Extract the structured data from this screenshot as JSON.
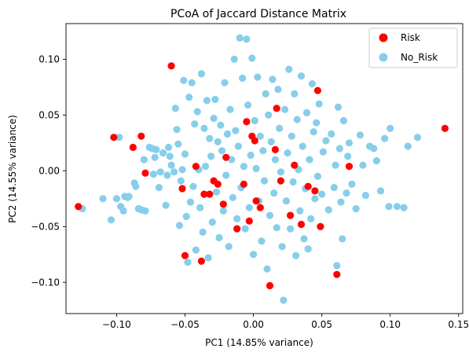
{
  "chart_data": {
    "type": "scatter",
    "title": "PCoA of Jaccard Distance Matrix",
    "xlabel": "PC1 (14.85% variance)",
    "ylabel": "PC2 (14.55% variance)",
    "xlim": [
      -0.137,
      0.153
    ],
    "ylim": [
      -0.128,
      0.132
    ],
    "xticks": [
      -0.1,
      -0.05,
      0.0,
      0.05,
      0.1,
      0.15
    ],
    "xtick_labels": [
      "−0.10",
      "−0.05",
      "0.00",
      "0.05",
      "0.10",
      "0.15"
    ],
    "yticks": [
      -0.1,
      -0.05,
      0.0,
      0.05,
      0.1
    ],
    "ytick_labels": [
      "−0.10",
      "−0.05",
      "0.00",
      "0.05",
      "0.10"
    ],
    "grid": false,
    "legend_position": "top-right",
    "series": [
      {
        "name": "Risk",
        "color": "#ff0000",
        "points": [
          [
            -0.128,
            -0.032
          ],
          [
            -0.102,
            0.03
          ],
          [
            -0.088,
            0.021
          ],
          [
            -0.082,
            0.031
          ],
          [
            -0.079,
            -0.002
          ],
          [
            -0.06,
            0.094
          ],
          [
            -0.052,
            -0.016
          ],
          [
            -0.05,
            -0.076
          ],
          [
            -0.042,
            0.004
          ],
          [
            -0.038,
            -0.081
          ],
          [
            -0.036,
            -0.021
          ],
          [
            -0.032,
            -0.021
          ],
          [
            -0.029,
            -0.009
          ],
          [
            -0.026,
            -0.012
          ],
          [
            -0.022,
            -0.03
          ],
          [
            -0.02,
            0.012
          ],
          [
            -0.012,
            -0.052
          ],
          [
            -0.007,
            -0.012
          ],
          [
            -0.005,
            0.044
          ],
          [
            -0.003,
            -0.045
          ],
          [
            -0.001,
            0.031
          ],
          [
            0.001,
            0.027
          ],
          [
            0.002,
            -0.027
          ],
          [
            0.005,
            -0.033
          ],
          [
            0.012,
            -0.103
          ],
          [
            0.016,
            0.019
          ],
          [
            0.017,
            0.056
          ],
          [
            0.02,
            -0.009
          ],
          [
            0.027,
            -0.04
          ],
          [
            0.03,
            0.005
          ],
          [
            0.035,
            -0.048
          ],
          [
            0.04,
            -0.014
          ],
          [
            0.045,
            -0.018
          ],
          [
            0.047,
            0.072
          ],
          [
            0.049,
            -0.05
          ],
          [
            0.061,
            -0.093
          ],
          [
            0.07,
            0.004
          ],
          [
            0.14,
            0.038
          ]
        ]
      },
      {
        "name": "No_Risk",
        "color": "#87ceeb",
        "points": [
          [
            -0.125,
            -0.034
          ],
          [
            -0.11,
            -0.025
          ],
          [
            -0.104,
            -0.044
          ],
          [
            -0.1,
            -0.025
          ],
          [
            -0.098,
            0.03
          ],
          [
            -0.097,
            -0.032
          ],
          [
            -0.095,
            -0.036
          ],
          [
            -0.094,
            -0.023
          ],
          [
            -0.092,
            -0.024
          ],
          [
            -0.091,
            -0.023
          ],
          [
            -0.087,
            -0.011
          ],
          [
            -0.086,
            -0.014
          ],
          [
            -0.084,
            -0.034
          ],
          [
            -0.082,
            -0.035
          ],
          [
            -0.08,
            0.01
          ],
          [
            -0.079,
            -0.036
          ],
          [
            -0.076,
            0.021
          ],
          [
            -0.074,
            0.02
          ],
          [
            -0.073,
            -0.003
          ],
          [
            -0.072,
            0.012
          ],
          [
            -0.071,
            0.019
          ],
          [
            -0.069,
            -0.015
          ],
          [
            -0.068,
            -0.001
          ],
          [
            -0.066,
            0.016
          ],
          [
            -0.064,
            -0.031
          ],
          [
            -0.063,
            -0.004
          ],
          [
            -0.062,
            0.021
          ],
          [
            -0.061,
            0.013
          ],
          [
            -0.06,
            0.005
          ],
          [
            -0.058,
            -0.001
          ],
          [
            -0.057,
            0.056
          ],
          [
            -0.056,
            0.037
          ],
          [
            -0.055,
            0.024
          ],
          [
            -0.054,
            -0.049
          ],
          [
            -0.053,
            -0.009
          ],
          [
            -0.052,
            0.001
          ],
          [
            -0.051,
            0.081
          ],
          [
            -0.05,
            0.015
          ],
          [
            -0.049,
            -0.041
          ],
          [
            -0.048,
            -0.082
          ],
          [
            -0.047,
            0.066
          ],
          [
            -0.046,
            -0.028
          ],
          [
            -0.045,
            0.079
          ],
          [
            -0.044,
            -0.014
          ],
          [
            -0.043,
            0.042
          ],
          [
            -0.042,
            -0.071
          ],
          [
            -0.041,
            0.053
          ],
          [
            -0.04,
            0.001
          ],
          [
            -0.039,
            -0.033
          ],
          [
            -0.038,
            0.087
          ],
          [
            -0.037,
            -0.055
          ],
          [
            -0.036,
            0.038
          ],
          [
            -0.035,
            0.004
          ],
          [
            -0.034,
            0.063
          ],
          [
            -0.033,
            -0.078
          ],
          [
            -0.032,
            0.029
          ],
          [
            -0.031,
            0.013
          ],
          [
            -0.03,
            -0.046
          ],
          [
            -0.029,
            0.047
          ],
          [
            -0.028,
            0.064
          ],
          [
            -0.027,
            -0.019
          ],
          [
            -0.026,
            0.026
          ],
          [
            -0.025,
            -0.06
          ],
          [
            -0.024,
            0.041
          ],
          [
            -0.023,
            0.018
          ],
          [
            -0.022,
            -0.036
          ],
          [
            -0.021,
            0.079
          ],
          [
            -0.02,
            -0.004
          ],
          [
            -0.019,
            0.033
          ],
          [
            -0.018,
            -0.068
          ],
          [
            -0.017,
            0.055
          ],
          [
            -0.016,
            0.01
          ],
          [
            -0.015,
            -0.024
          ],
          [
            -0.014,
            0.1
          ],
          [
            -0.013,
            0.036
          ],
          [
            -0.012,
            -0.043
          ],
          [
            -0.011,
            0.022
          ],
          [
            -0.01,
            0.119
          ],
          [
            -0.009,
            -0.015
          ],
          [
            -0.008,
            0.083
          ],
          [
            -0.007,
            0.004
          ],
          [
            -0.006,
            -0.052
          ],
          [
            -0.005,
            0.118
          ],
          [
            -0.004,
            0.059
          ],
          [
            -0.003,
            -0.033
          ],
          [
            -0.002,
            0.014
          ],
          [
            -0.001,
            0.101
          ],
          [
            0.0,
            -0.075
          ],
          [
            0.001,
            0.045
          ],
          [
            0.002,
            0.002
          ],
          [
            0.003,
            0.084
          ],
          [
            0.004,
            -0.027
          ],
          [
            0.005,
            0.031
          ],
          [
            0.006,
            -0.063
          ],
          [
            0.007,
            0.018
          ],
          [
            0.008,
            -0.009
          ],
          [
            0.009,
            0.069
          ],
          [
            0.01,
            -0.088
          ],
          [
            0.011,
            0.05
          ],
          [
            0.012,
            -0.04
          ],
          [
            0.013,
            0.026
          ],
          [
            0.014,
            0.082
          ],
          [
            0.015,
            -0.02
          ],
          [
            0.016,
            0.01
          ],
          [
            0.017,
            -0.051
          ],
          [
            0.018,
            0.073
          ],
          [
            0.019,
            0.038
          ],
          [
            0.02,
            -0.001
          ],
          [
            0.021,
            -0.068
          ],
          [
            0.022,
            -0.116
          ],
          [
            0.023,
            0.055
          ],
          [
            0.024,
            -0.027
          ],
          [
            0.025,
            0.016
          ],
          [
            0.026,
            0.091
          ],
          [
            0.027,
            -0.052
          ],
          [
            0.028,
            0.031
          ],
          [
            0.029,
            -0.01
          ],
          [
            0.03,
            0.069
          ],
          [
            0.031,
            -0.076
          ],
          [
            0.032,
            0.046
          ],
          [
            0.033,
            0.001
          ],
          [
            0.034,
            -0.036
          ],
          [
            0.035,
            0.085
          ],
          [
            0.036,
            0.022
          ],
          [
            0.037,
            -0.061
          ],
          [
            0.038,
            -0.016
          ],
          [
            0.039,
            0.052
          ],
          [
            0.04,
            -0.07
          ],
          [
            0.041,
            0.01
          ],
          [
            0.042,
            -0.043
          ],
          [
            0.043,
            0.078
          ],
          [
            0.044,
            0.035
          ],
          [
            0.045,
            -0.025
          ],
          [
            0.046,
            0.043
          ],
          [
            0.047,
            -0.005
          ],
          [
            0.048,
            0.06
          ],
          [
            0.05,
            -0.021
          ],
          [
            0.051,
            0.017
          ],
          [
            0.053,
            0.027
          ],
          [
            0.055,
            -0.035
          ],
          [
            0.057,
            0.033
          ],
          [
            0.059,
            -0.015
          ],
          [
            0.06,
            0.005
          ],
          [
            0.061,
            -0.085
          ],
          [
            0.062,
            0.057
          ],
          [
            0.063,
            0.02
          ],
          [
            0.064,
            -0.028
          ],
          [
            0.065,
            -0.061
          ],
          [
            0.066,
            0.045
          ],
          [
            0.068,
            -0.02
          ],
          [
            0.069,
            0.013
          ],
          [
            0.07,
            0.025
          ],
          [
            0.072,
            -0.012
          ],
          [
            0.075,
            -0.034
          ],
          [
            0.078,
            0.032
          ],
          [
            0.08,
            0.005
          ],
          [
            0.082,
            -0.022
          ],
          [
            0.085,
            0.022
          ],
          [
            0.088,
            0.02
          ],
          [
            0.09,
            0.009
          ],
          [
            0.093,
            -0.018
          ],
          [
            0.096,
            0.029
          ],
          [
            0.099,
            -0.032
          ],
          [
            0.1,
            0.038
          ],
          [
            0.105,
            -0.032
          ],
          [
            0.11,
            -0.033
          ],
          [
            0.113,
            0.022
          ],
          [
            0.12,
            0.03
          ]
        ]
      }
    ]
  }
}
